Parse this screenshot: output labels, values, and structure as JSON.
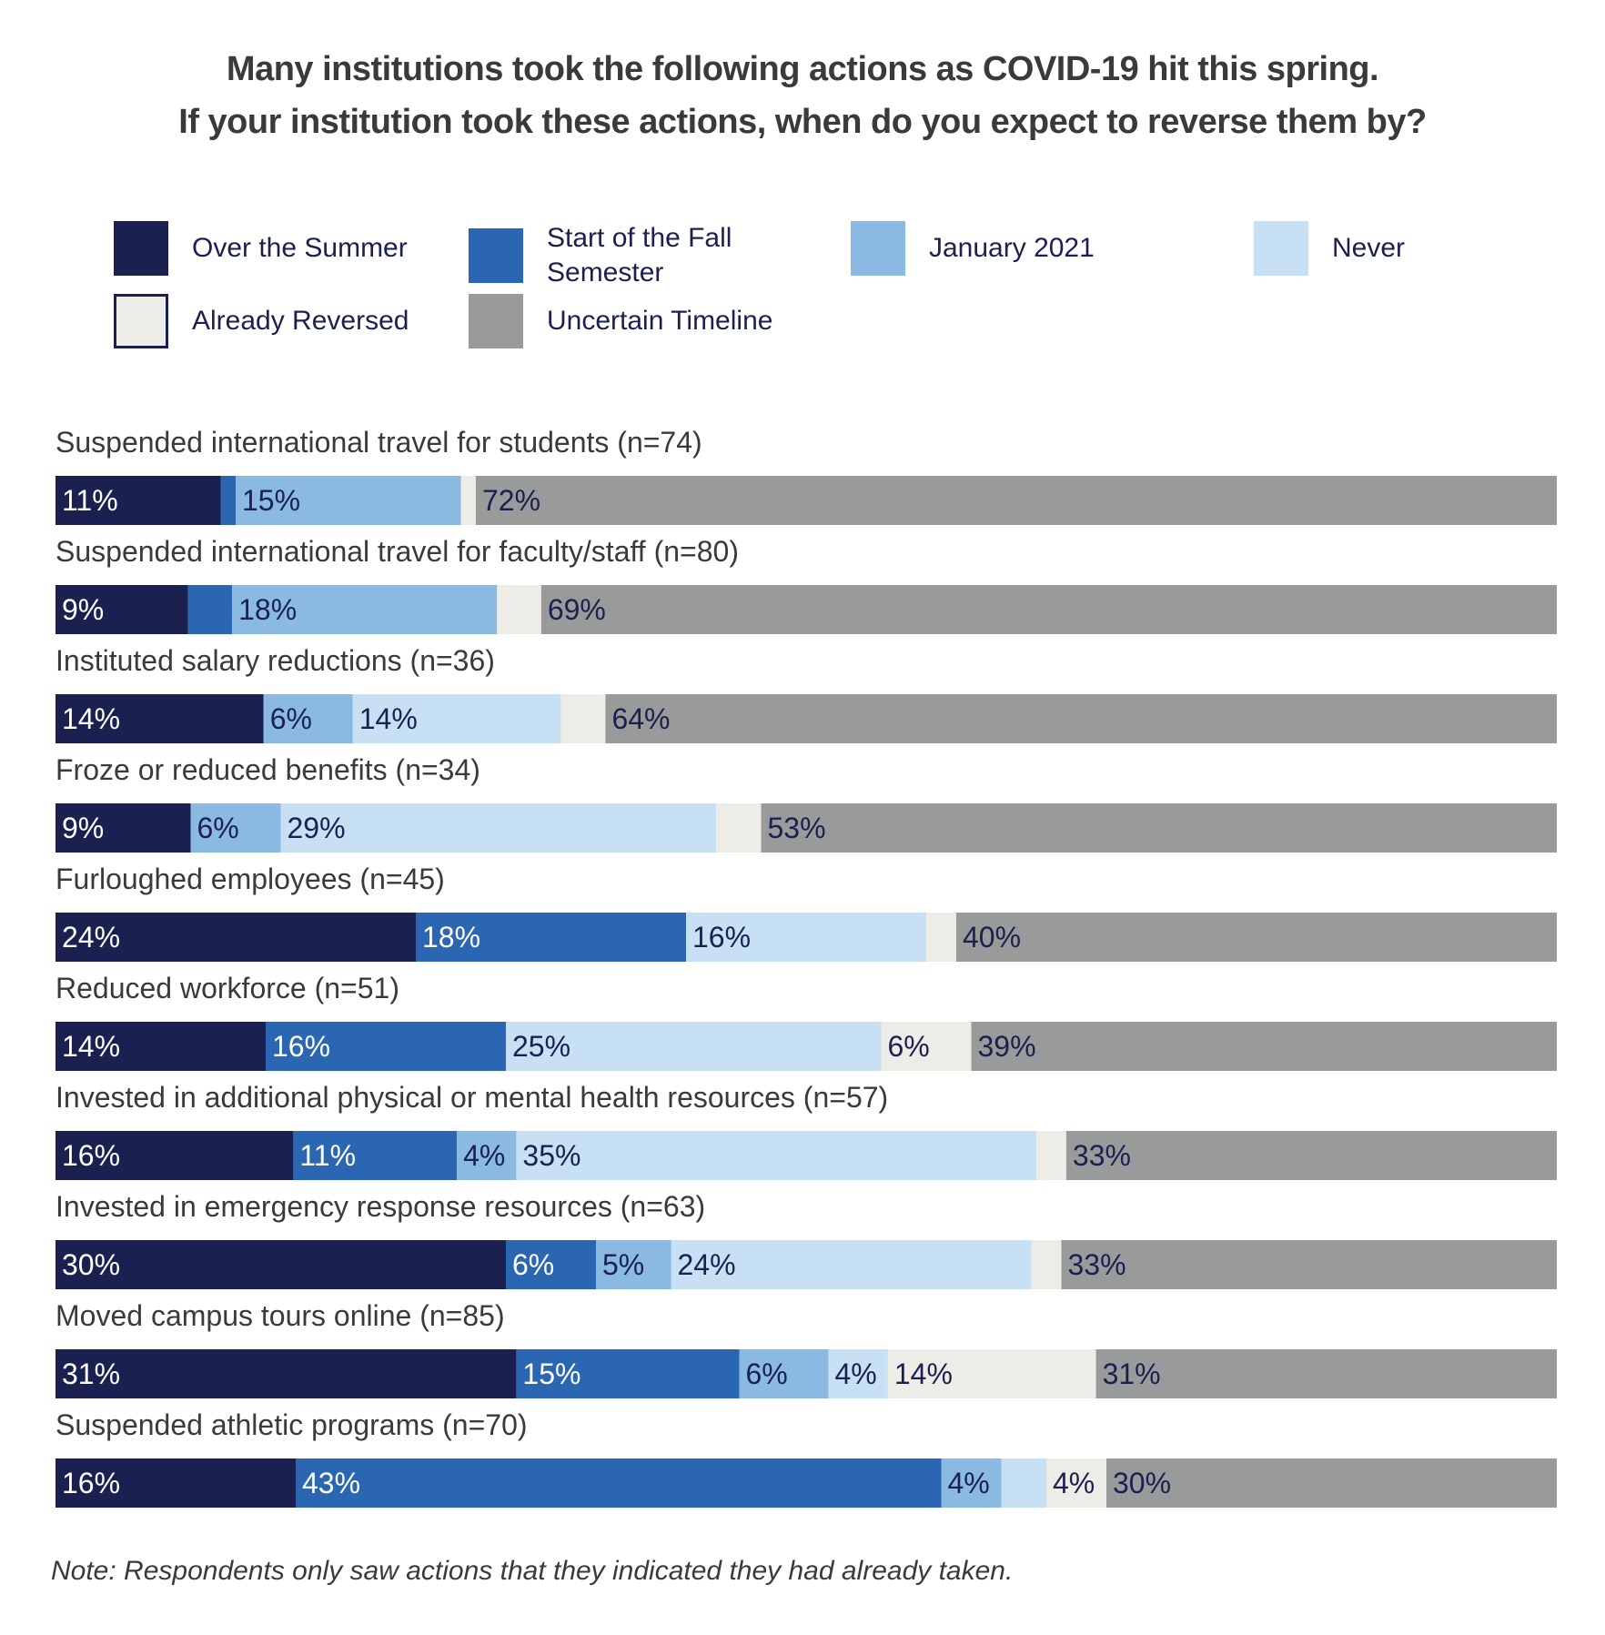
{
  "title_line1": "Many institutions took the following actions as COVID-19 hit this spring.",
  "title_line2": "If your institution took these actions, when do you expect to reverse them by?",
  "note": "Note: Respondents only saw actions that they indicated they had already taken.",
  "legend": [
    {
      "label": "Over the Summer",
      "color": "#1a2150"
    },
    {
      "label": "Start of the Fall Semester",
      "color": "#2a66b2"
    },
    {
      "label": "January 2021",
      "color": "#8ab9e2"
    },
    {
      "label": "Never",
      "color": "#c7e0f4"
    },
    {
      "label": "Already Reversed",
      "color": "#eeece6"
    },
    {
      "label": "Uncertain Timeline",
      "color": "#999b9b"
    }
  ],
  "chart_data": {
    "type": "bar",
    "orientation": "horizontal",
    "stacked": true,
    "series_order": [
      "Over the Summer",
      "Start of the Fall Semester",
      "January 2021",
      "Never",
      "Already Reversed",
      "Uncertain Timeline"
    ],
    "categories": [
      "Suspended international travel for students (n=74)",
      "Suspended international travel for faculty/staff (n=80)",
      "Instituted salary reductions (n=36)",
      "Froze or reduced benefits (n=34)",
      "Furloughed employees (n=45)",
      "Reduced workforce (n=51)",
      "Invested in additional physical or mental health resources (n=57)",
      "Invested in emergency response resources (n=63)",
      "Moved campus tours online (n=85)",
      "Suspended athletic programs (n=70)"
    ],
    "rows": [
      {
        "values": [
          11,
          1,
          15,
          0,
          1,
          72
        ],
        "labels": [
          "11%",
          "",
          "15%",
          "",
          "",
          "72%"
        ]
      },
      {
        "values": [
          9,
          3,
          18,
          0,
          3,
          69
        ],
        "labels": [
          "9%",
          "",
          "18%",
          "",
          "",
          "69%"
        ]
      },
      {
        "values": [
          14,
          0,
          6,
          14,
          3,
          64
        ],
        "labels": [
          "14%",
          "",
          "6%",
          "14%",
          "",
          "64%"
        ]
      },
      {
        "values": [
          9,
          0,
          6,
          29,
          3,
          53
        ],
        "labels": [
          "9%",
          "",
          "6%",
          "29%",
          "",
          "53%"
        ]
      },
      {
        "values": [
          24,
          18,
          0,
          16,
          2,
          40
        ],
        "labels": [
          "24%",
          "18%",
          "",
          "16%",
          "",
          "40%"
        ]
      },
      {
        "values": [
          14,
          16,
          0,
          25,
          6,
          39
        ],
        "labels": [
          "14%",
          "16%",
          "",
          "25%",
          "6%",
          "39%"
        ]
      },
      {
        "values": [
          16,
          11,
          4,
          35,
          2,
          33
        ],
        "labels": [
          "16%",
          "11%",
          "4%",
          "35%",
          "",
          "33%"
        ]
      },
      {
        "values": [
          30,
          6,
          5,
          24,
          2,
          33
        ],
        "labels": [
          "30%",
          "6%",
          "5%",
          "24%",
          "",
          "33%"
        ]
      },
      {
        "values": [
          31,
          15,
          6,
          4,
          14,
          31
        ],
        "labels": [
          "31%",
          "15%",
          "6%",
          "4%",
          "14%",
          "31%"
        ]
      },
      {
        "values": [
          16,
          43,
          4,
          3,
          4,
          30
        ],
        "labels": [
          "16%",
          "43%",
          "4%",
          "",
          "4%",
          "30%"
        ]
      }
    ]
  }
}
